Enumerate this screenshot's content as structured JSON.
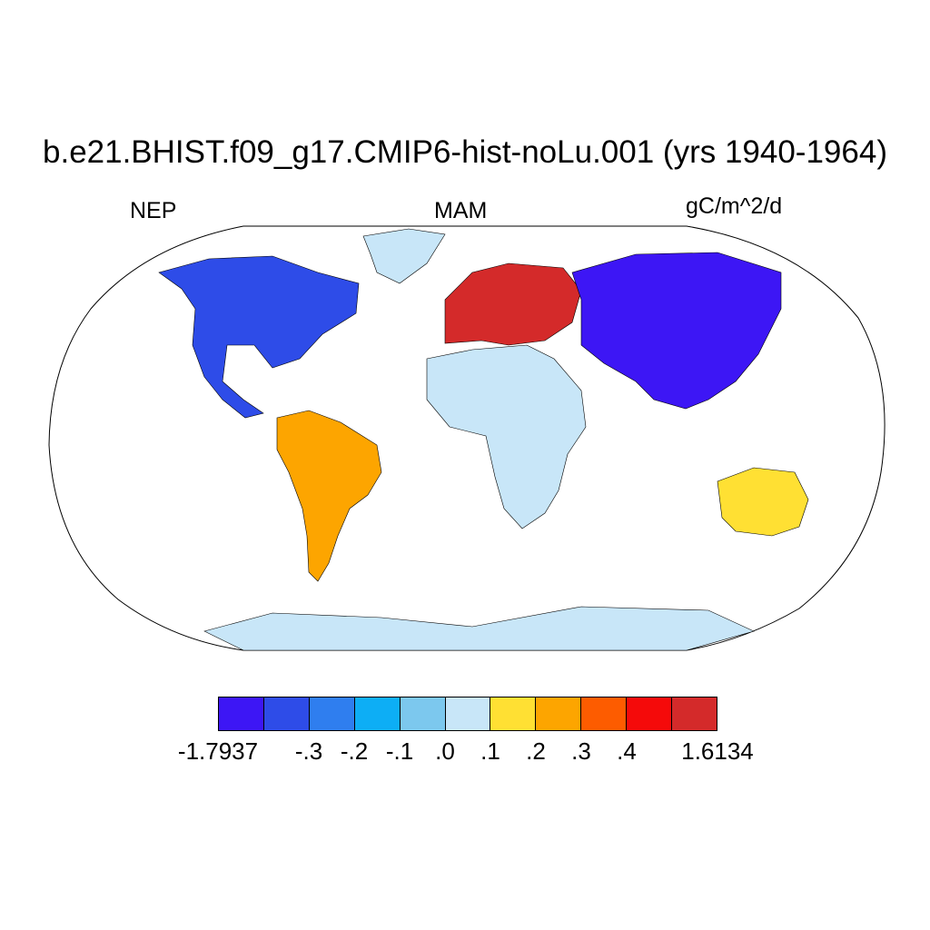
{
  "title": "b.e21.BHIST.f09_g17.CMIP6-hist-noLu.001 (yrs 1940-1964)",
  "left_label": "NEP",
  "center_label": "MAM",
  "right_label": "gC/m^2/d",
  "map": {
    "projection": "robinson",
    "ocean_color": "#ffffff",
    "outline_color": "#000000",
    "regions": [
      {
        "name": "North America",
        "color": "#2E4CE8"
      },
      {
        "name": "South America",
        "color": "#FDA500"
      },
      {
        "name": "Europe",
        "color": "#D42A2A"
      },
      {
        "name": "Africa",
        "color": "#C8E6F8"
      },
      {
        "name": "Asia",
        "color": "#3D16F5"
      },
      {
        "name": "Australia",
        "color": "#FFE033"
      },
      {
        "name": "Antarctica",
        "color": "#C8E6F8"
      },
      {
        "name": "Greenland",
        "color": "#C8E6F8"
      }
    ]
  },
  "colorbar": {
    "colors": [
      "#3D16F5",
      "#2E4CE8",
      "#2F7EEF",
      "#0DAEF5",
      "#7CC8EE",
      "#C8E6F8",
      "#FFE033",
      "#FDA500",
      "#FD5C00",
      "#F50A0A",
      "#D42A2A"
    ],
    "labels": [
      "-1.7937",
      "-.3",
      "-.2",
      "-.1",
      ".0",
      ".1",
      ".2",
      ".3",
      ".4",
      "1.6134"
    ]
  }
}
